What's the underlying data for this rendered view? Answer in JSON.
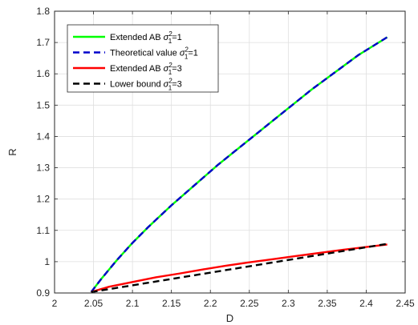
{
  "chart_data": {
    "type": "line",
    "title": "",
    "xlabel": "D",
    "ylabel": "R",
    "xlim": [
      2,
      2.45
    ],
    "ylim": [
      0.9,
      1.8
    ],
    "xticks": [
      "2",
      "2.05",
      "2.1",
      "2.15",
      "2.2",
      "2.25",
      "2.3",
      "2.35",
      "2.4",
      "2.45"
    ],
    "yticks": [
      "0.9",
      "1",
      "1.1",
      "1.2",
      "1.3",
      "1.4",
      "1.5",
      "1.6",
      "1.7",
      "1.8"
    ],
    "grid": true,
    "legend_position": "top-left",
    "series": [
      {
        "name": "Extended AB σ₁²=1",
        "legend": {
          "pre": "Extended AB ",
          "sym": "σ",
          "sup": "2",
          "sub": "1",
          "post": "=1"
        },
        "color": "#00ff00",
        "style": "solid",
        "x": [
          2.047,
          2.06,
          2.08,
          2.1,
          2.12,
          2.15,
          2.18,
          2.21,
          2.24,
          2.27,
          2.3,
          2.33,
          2.36,
          2.39,
          2.427
        ],
        "y": [
          0.903,
          0.945,
          1.005,
          1.06,
          1.11,
          1.18,
          1.245,
          1.31,
          1.37,
          1.43,
          1.49,
          1.55,
          1.605,
          1.66,
          1.717
        ]
      },
      {
        "name": "Theoretical value σ₁²=1",
        "legend": {
          "pre": "Theoretical value ",
          "sym": "σ",
          "sup": "2",
          "sub": "1",
          "post": "=1"
        },
        "color": "#0000cc",
        "style": "dashed",
        "x": [
          2.047,
          2.06,
          2.08,
          2.1,
          2.12,
          2.15,
          2.18,
          2.21,
          2.24,
          2.27,
          2.3,
          2.33,
          2.36,
          2.39,
          2.427
        ],
        "y": [
          0.903,
          0.945,
          1.005,
          1.06,
          1.11,
          1.18,
          1.245,
          1.31,
          1.37,
          1.43,
          1.49,
          1.55,
          1.605,
          1.66,
          1.717
        ]
      },
      {
        "name": "Extended AB σ₁²=3",
        "legend": {
          "pre": "Extended AB ",
          "sym": "σ",
          "sup": "2",
          "sub": "1",
          "post": "=3"
        },
        "color": "#ff0000",
        "style": "solid",
        "x": [
          2.047,
          2.07,
          2.1,
          2.13,
          2.16,
          2.19,
          2.22,
          2.25,
          2.28,
          2.31,
          2.34,
          2.37,
          2.4,
          2.427
        ],
        "y": [
          0.903,
          0.92,
          0.935,
          0.95,
          0.962,
          0.975,
          0.987,
          0.998,
          1.008,
          1.018,
          1.028,
          1.038,
          1.047,
          1.055
        ]
      },
      {
        "name": "Lower bound σ₁²=3",
        "legend": {
          "pre": "Lower bound ",
          "sym": "σ",
          "sup": "2",
          "sub": "1",
          "post": "=3"
        },
        "color": "#000000",
        "style": "dashed",
        "x": [
          2.047,
          2.427
        ],
        "y": [
          0.903,
          1.057
        ]
      }
    ]
  }
}
